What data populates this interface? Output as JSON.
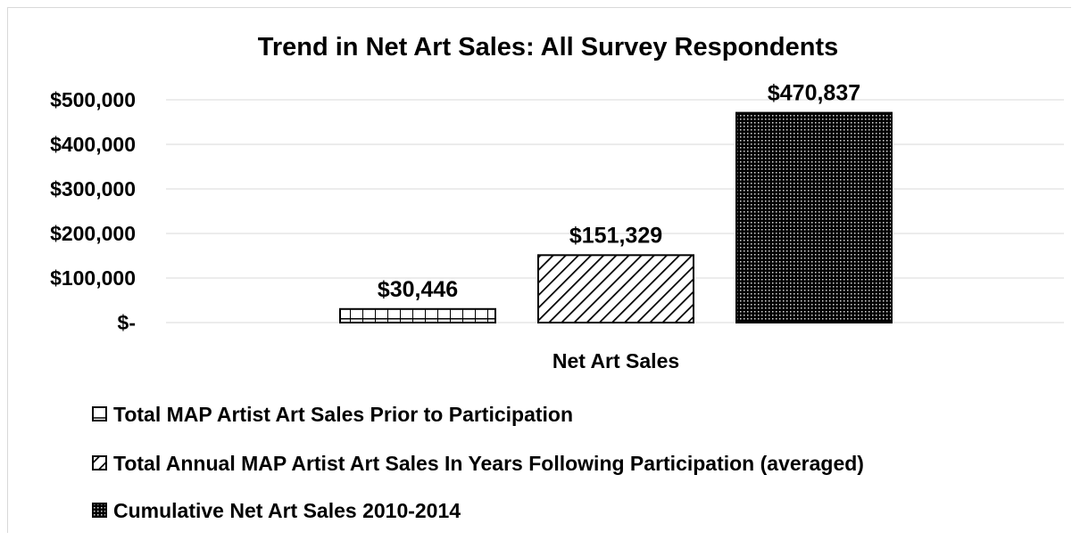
{
  "chart_data": {
    "type": "bar",
    "title": "Trend in Net Art Sales: All Survey Respondents",
    "xlabel": "Net Art Sales",
    "ylabel": "",
    "categories": [
      "Net Art Sales"
    ],
    "ylim": [
      0,
      500000
    ],
    "yticks": [
      0,
      100000,
      200000,
      300000,
      400000,
      500000
    ],
    "ytick_labels": [
      "$-",
      "$100,000",
      "$200,000",
      "$300,000",
      "$400,000",
      "$500,000"
    ],
    "grid": true,
    "legend_position": "bottom",
    "series": [
      {
        "name": "Total MAP Artist Art Sales Prior to Participation",
        "values": [
          30446
        ],
        "data_label": "$30,446",
        "pattern": "brick"
      },
      {
        "name": "Total Annual MAP Artist Art Sales In Years Following Participation (averaged)",
        "values": [
          151329
        ],
        "data_label": "$151,329",
        "pattern": "diagonal"
      },
      {
        "name": "Cumulative Net Art Sales 2010-2014",
        "values": [
          470837
        ],
        "data_label": "$470,837",
        "pattern": "dots"
      }
    ],
    "colors": {
      "gridline": "#d9d9d9",
      "bar_stroke": "#000000",
      "bar_fill": "#ffffff"
    }
  }
}
